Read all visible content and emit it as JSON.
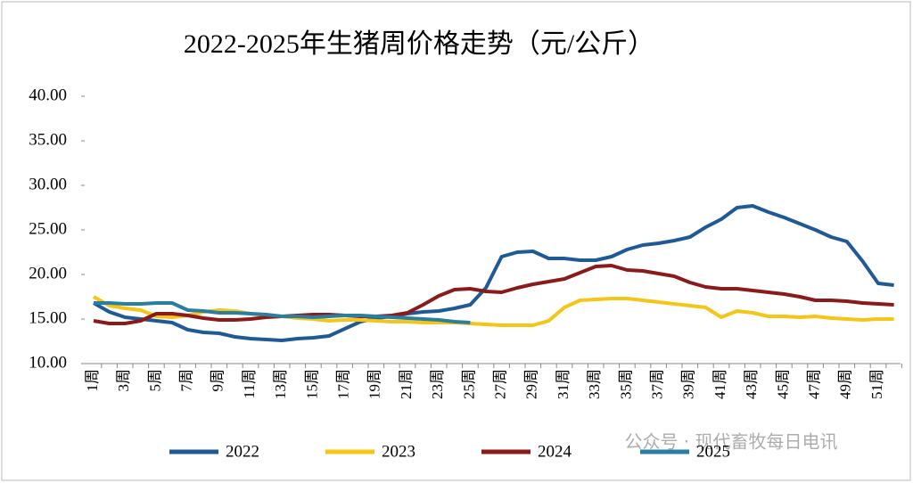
{
  "chart_data": {
    "type": "line",
    "title": "2022-2025年生猪周价格走势（元/公斤）",
    "watermark": "公众号 · 现代畜牧每日电讯",
    "categories": [
      "1周",
      null,
      "3周",
      null,
      "5周",
      null,
      "7周",
      null,
      "9周",
      null,
      "11周",
      null,
      "13周",
      null,
      "15周",
      null,
      "17周",
      null,
      "19周",
      null,
      "21周",
      null,
      "23周",
      null,
      "25周",
      null,
      "27周",
      null,
      "29周",
      null,
      "31周",
      null,
      "33周",
      null,
      "35周",
      null,
      "37周",
      null,
      "39周",
      null,
      "41周",
      null,
      "43周",
      null,
      "45周",
      null,
      "47周",
      null,
      "49周",
      null,
      "51周",
      null
    ],
    "ylim": [
      10,
      40
    ],
    "yticks": [
      {
        "value": 10,
        "label": "10.00"
      },
      {
        "value": 15,
        "label": "15.00"
      },
      {
        "value": 20,
        "label": "20.00"
      },
      {
        "value": 25,
        "label": "25.00"
      },
      {
        "value": 30,
        "label": "30.00"
      },
      {
        "value": 35,
        "label": "35.00"
      },
      {
        "value": 40,
        "label": "40.00"
      }
    ],
    "legend": "bottom",
    "series": [
      {
        "name": "2022",
        "color": "#1f5a96",
        "values": [
          16.8,
          15.8,
          15.2,
          15.0,
          14.8,
          14.6,
          13.8,
          13.5,
          13.4,
          13.0,
          12.8,
          12.7,
          12.6,
          12.8,
          12.9,
          13.1,
          13.9,
          14.7,
          15.1,
          15.3,
          15.6,
          15.8,
          15.9,
          16.2,
          16.6,
          18.5,
          22.0,
          22.5,
          22.6,
          21.8,
          21.8,
          21.6,
          21.6,
          22.0,
          22.8,
          23.3,
          23.5,
          23.8,
          24.2,
          25.3,
          26.2,
          27.5,
          27.7,
          27.0,
          26.4,
          25.7,
          25.0,
          24.2,
          23.7,
          21.5,
          19.0,
          18.8
        ]
      },
      {
        "name": "2023",
        "color": "#f5c518",
        "values": [
          17.5,
          16.5,
          16.2,
          16.0,
          15.3,
          15.2,
          15.4,
          15.8,
          16.0,
          15.9,
          15.6,
          15.4,
          15.3,
          15.1,
          15.0,
          14.8,
          14.9,
          14.9,
          14.8,
          14.7,
          14.7,
          14.6,
          14.6,
          14.6,
          14.5,
          14.4,
          14.3,
          14.3,
          14.3,
          14.8,
          16.3,
          17.1,
          17.2,
          17.3,
          17.3,
          17.1,
          16.9,
          16.7,
          16.5,
          16.3,
          15.2,
          15.9,
          15.7,
          15.3,
          15.3,
          15.2,
          15.3,
          15.1,
          15.0,
          14.9,
          15.0,
          15.0
        ]
      },
      {
        "name": "2024",
        "color": "#8b1a1a",
        "values": [
          14.8,
          14.5,
          14.5,
          14.8,
          15.6,
          15.6,
          15.4,
          15.1,
          14.9,
          14.9,
          15.0,
          15.2,
          15.3,
          15.4,
          15.5,
          15.5,
          15.4,
          15.3,
          15.3,
          15.4,
          15.7,
          16.6,
          17.6,
          18.3,
          18.4,
          18.1,
          18.0,
          18.5,
          18.9,
          19.2,
          19.5,
          20.2,
          20.9,
          21.0,
          20.5,
          20.4,
          20.1,
          19.8,
          19.1,
          18.6,
          18.4,
          18.4,
          18.2,
          18.0,
          17.8,
          17.5,
          17.1,
          17.1,
          17.0,
          16.8,
          16.7,
          16.6
        ]
      },
      {
        "name": "2025",
        "color": "#2a7fa0",
        "values": [
          16.8,
          16.8,
          16.7,
          16.7,
          16.8,
          16.8,
          16.0,
          15.9,
          15.7,
          15.7,
          15.6,
          15.5,
          15.3,
          15.3,
          15.2,
          15.3,
          15.4,
          15.4,
          15.3,
          15.2,
          15.1,
          15.0,
          14.9,
          14.7,
          14.6,
          null,
          null,
          null,
          null,
          null,
          null,
          null,
          null,
          null,
          null,
          null,
          null,
          null,
          null,
          null,
          null,
          null,
          null,
          null,
          null,
          null,
          null,
          null,
          null,
          null,
          null,
          null
        ]
      }
    ]
  }
}
